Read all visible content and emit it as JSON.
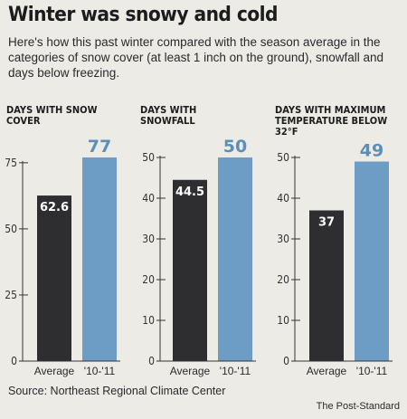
{
  "title": "Winter was snowy and cold",
  "subtitle": "Here's how this past winter compared with the season average in the categories of snow cover (at least 1 inch on the ground), snowfall and days below freezing.",
  "source": "Source: Northeast Regional Climate Center",
  "credit": "The Post-Standard",
  "colors": {
    "average": "#2e2e30",
    "current": "#6d9cc4",
    "axis": "#333333"
  },
  "chart_data": [
    {
      "type": "bar",
      "title": "DAYS WITH SNOW COVER",
      "categories": [
        "Average",
        "'10-'11"
      ],
      "values": [
        62.6,
        77
      ],
      "value_labels": [
        "62.6",
        "77"
      ],
      "ylim": [
        0,
        77
      ],
      "yticks": [
        0,
        25,
        50,
        75
      ]
    },
    {
      "type": "bar",
      "title": "DAYS WITH SNOWFALL",
      "categories": [
        "Average",
        "'10-'11"
      ],
      "values": [
        44.5,
        50
      ],
      "value_labels": [
        "44.5",
        "50"
      ],
      "ylim": [
        0,
        50
      ],
      "yticks": [
        0,
        10,
        20,
        30,
        40,
        50
      ]
    },
    {
      "type": "bar",
      "title": "DAYS WITH MAXIMUM TEMPERATURE BELOW 32°F",
      "categories": [
        "Average",
        "'10-'11"
      ],
      "values": [
        37,
        49
      ],
      "value_labels": [
        "37",
        "49"
      ],
      "ylim": [
        0,
        50
      ],
      "yticks": [
        0,
        10,
        20,
        30,
        40,
        50
      ]
    }
  ]
}
